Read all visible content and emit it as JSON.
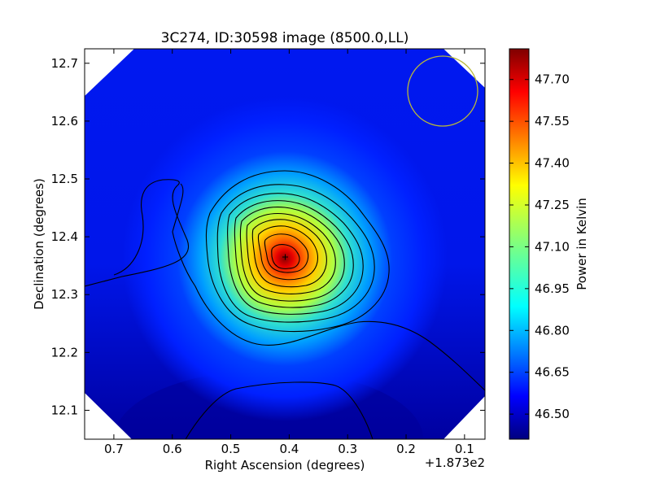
{
  "chart_data": {
    "type": "heatmap",
    "title": "3C274, ID:30598 image (8500.0,LL)",
    "xlabel": "Right Ascension (degrees)",
    "ylabel": "Declination (degrees)",
    "x_offset_label": "+1.873e2",
    "xlim": [
      0.75,
      0.065
    ],
    "ylim": [
      12.05,
      12.725
    ],
    "x_ticks": [
      {
        "value": 0.7,
        "label": "0.7"
      },
      {
        "value": 0.6,
        "label": "0.6"
      },
      {
        "value": 0.5,
        "label": "0.5"
      },
      {
        "value": 0.4,
        "label": "0.4"
      },
      {
        "value": 0.3,
        "label": "0.3"
      },
      {
        "value": 0.2,
        "label": "0.2"
      },
      {
        "value": 0.1,
        "label": "0.1"
      }
    ],
    "y_ticks": [
      {
        "value": 12.1,
        "label": "12.1"
      },
      {
        "value": 12.2,
        "label": "12.2"
      },
      {
        "value": 12.3,
        "label": "12.3"
      },
      {
        "value": 12.4,
        "label": "12.4"
      },
      {
        "value": 12.5,
        "label": "12.5"
      },
      {
        "value": 12.6,
        "label": "12.6"
      },
      {
        "value": 12.7,
        "label": "12.7"
      }
    ],
    "peak": {
      "x": 0.405,
      "y": 12.365,
      "value": 47.81
    },
    "background_value": 46.52,
    "beam_circle": {
      "x": 0.137,
      "y": 12.652,
      "radius_deg": 0.06,
      "color": "#b8b83a"
    },
    "colorbar": {
      "label": "Power in Kelvin",
      "range": [
        46.41,
        47.81
      ],
      "colormap": "jet",
      "ticks": [
        {
          "value": 46.5,
          "label": "46.50"
        },
        {
          "value": 46.65,
          "label": "46.65"
        },
        {
          "value": 46.8,
          "label": "46.80"
        },
        {
          "value": 46.95,
          "label": "46.95"
        },
        {
          "value": 47.1,
          "label": "47.10"
        },
        {
          "value": 47.25,
          "label": "47.25"
        },
        {
          "value": 47.4,
          "label": "47.40"
        },
        {
          "value": 47.55,
          "label": "47.55"
        },
        {
          "value": 47.7,
          "label": "47.70"
        }
      ]
    },
    "contour_color": "#000000",
    "grid": false
  }
}
